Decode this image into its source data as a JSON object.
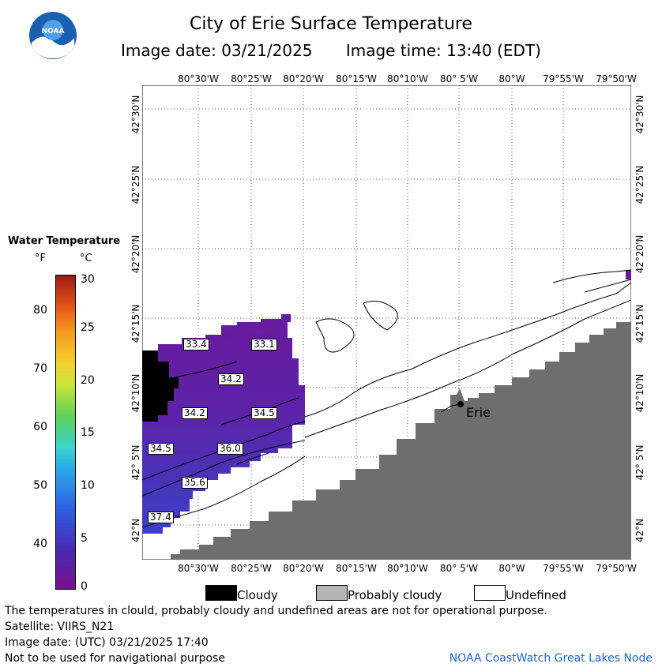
{
  "header": {
    "title": "City of Erie Surface Temperature",
    "image_date": "Image date: 03/21/2025",
    "image_time": "Image time: 13:40 (EDT)"
  },
  "logo": {
    "text": "NOAA",
    "icon": "noaa-logo"
  },
  "map": {
    "lon_labels": [
      "80°30'W",
      "80°25'W",
      "80°20'W",
      "80°15'W",
      "80°10'W",
      "80° 5'W",
      "80°W",
      "79°55'W",
      "79°50'W"
    ],
    "lat_labels": [
      "42°30'N",
      "42°25'N",
      "42°20'N",
      "42°15'N",
      "42°10'N",
      "42° 5'N",
      "42°N"
    ],
    "city_label": "Erie",
    "temp_labels": [
      "33.4",
      "33.1",
      "34.2",
      "34.2",
      "34.5",
      "34.5",
      "36.0",
      "35.6",
      "37.4"
    ],
    "colors": {
      "land": "#6e6e6e",
      "cloud": "#000000",
      "water_cold": "#6a1a9e",
      "water_warm": "#3a3fc4"
    }
  },
  "legend": {
    "title": "Water Temperature",
    "unit_f": "°F",
    "unit_c": "°C",
    "f_ticks": [
      "80",
      "70",
      "60",
      "50",
      "40"
    ],
    "c_ticks": [
      "30",
      "25",
      "20",
      "15",
      "10",
      "5",
      "0"
    ]
  },
  "key": {
    "cloudy": "Cloudy",
    "probably_cloudy": "Probably cloudy",
    "undefined": "Undefined",
    "colors": {
      "cloudy": "#000000",
      "probably_cloudy": "#b4b4b4",
      "undefined": "#ffffff"
    }
  },
  "footer": {
    "disclaimer": "The temperatures in clould, probably cloudy and undefined areas are not for operational purpose.",
    "satellite": "Satellite: VIIRS_N21",
    "utc_date": "Image date: (UTC) 03/21/2025  17:40",
    "nav_warning": "Not to be used for navigational purpose",
    "credit": "NOAA CoastWatch Great Lakes Node"
  }
}
